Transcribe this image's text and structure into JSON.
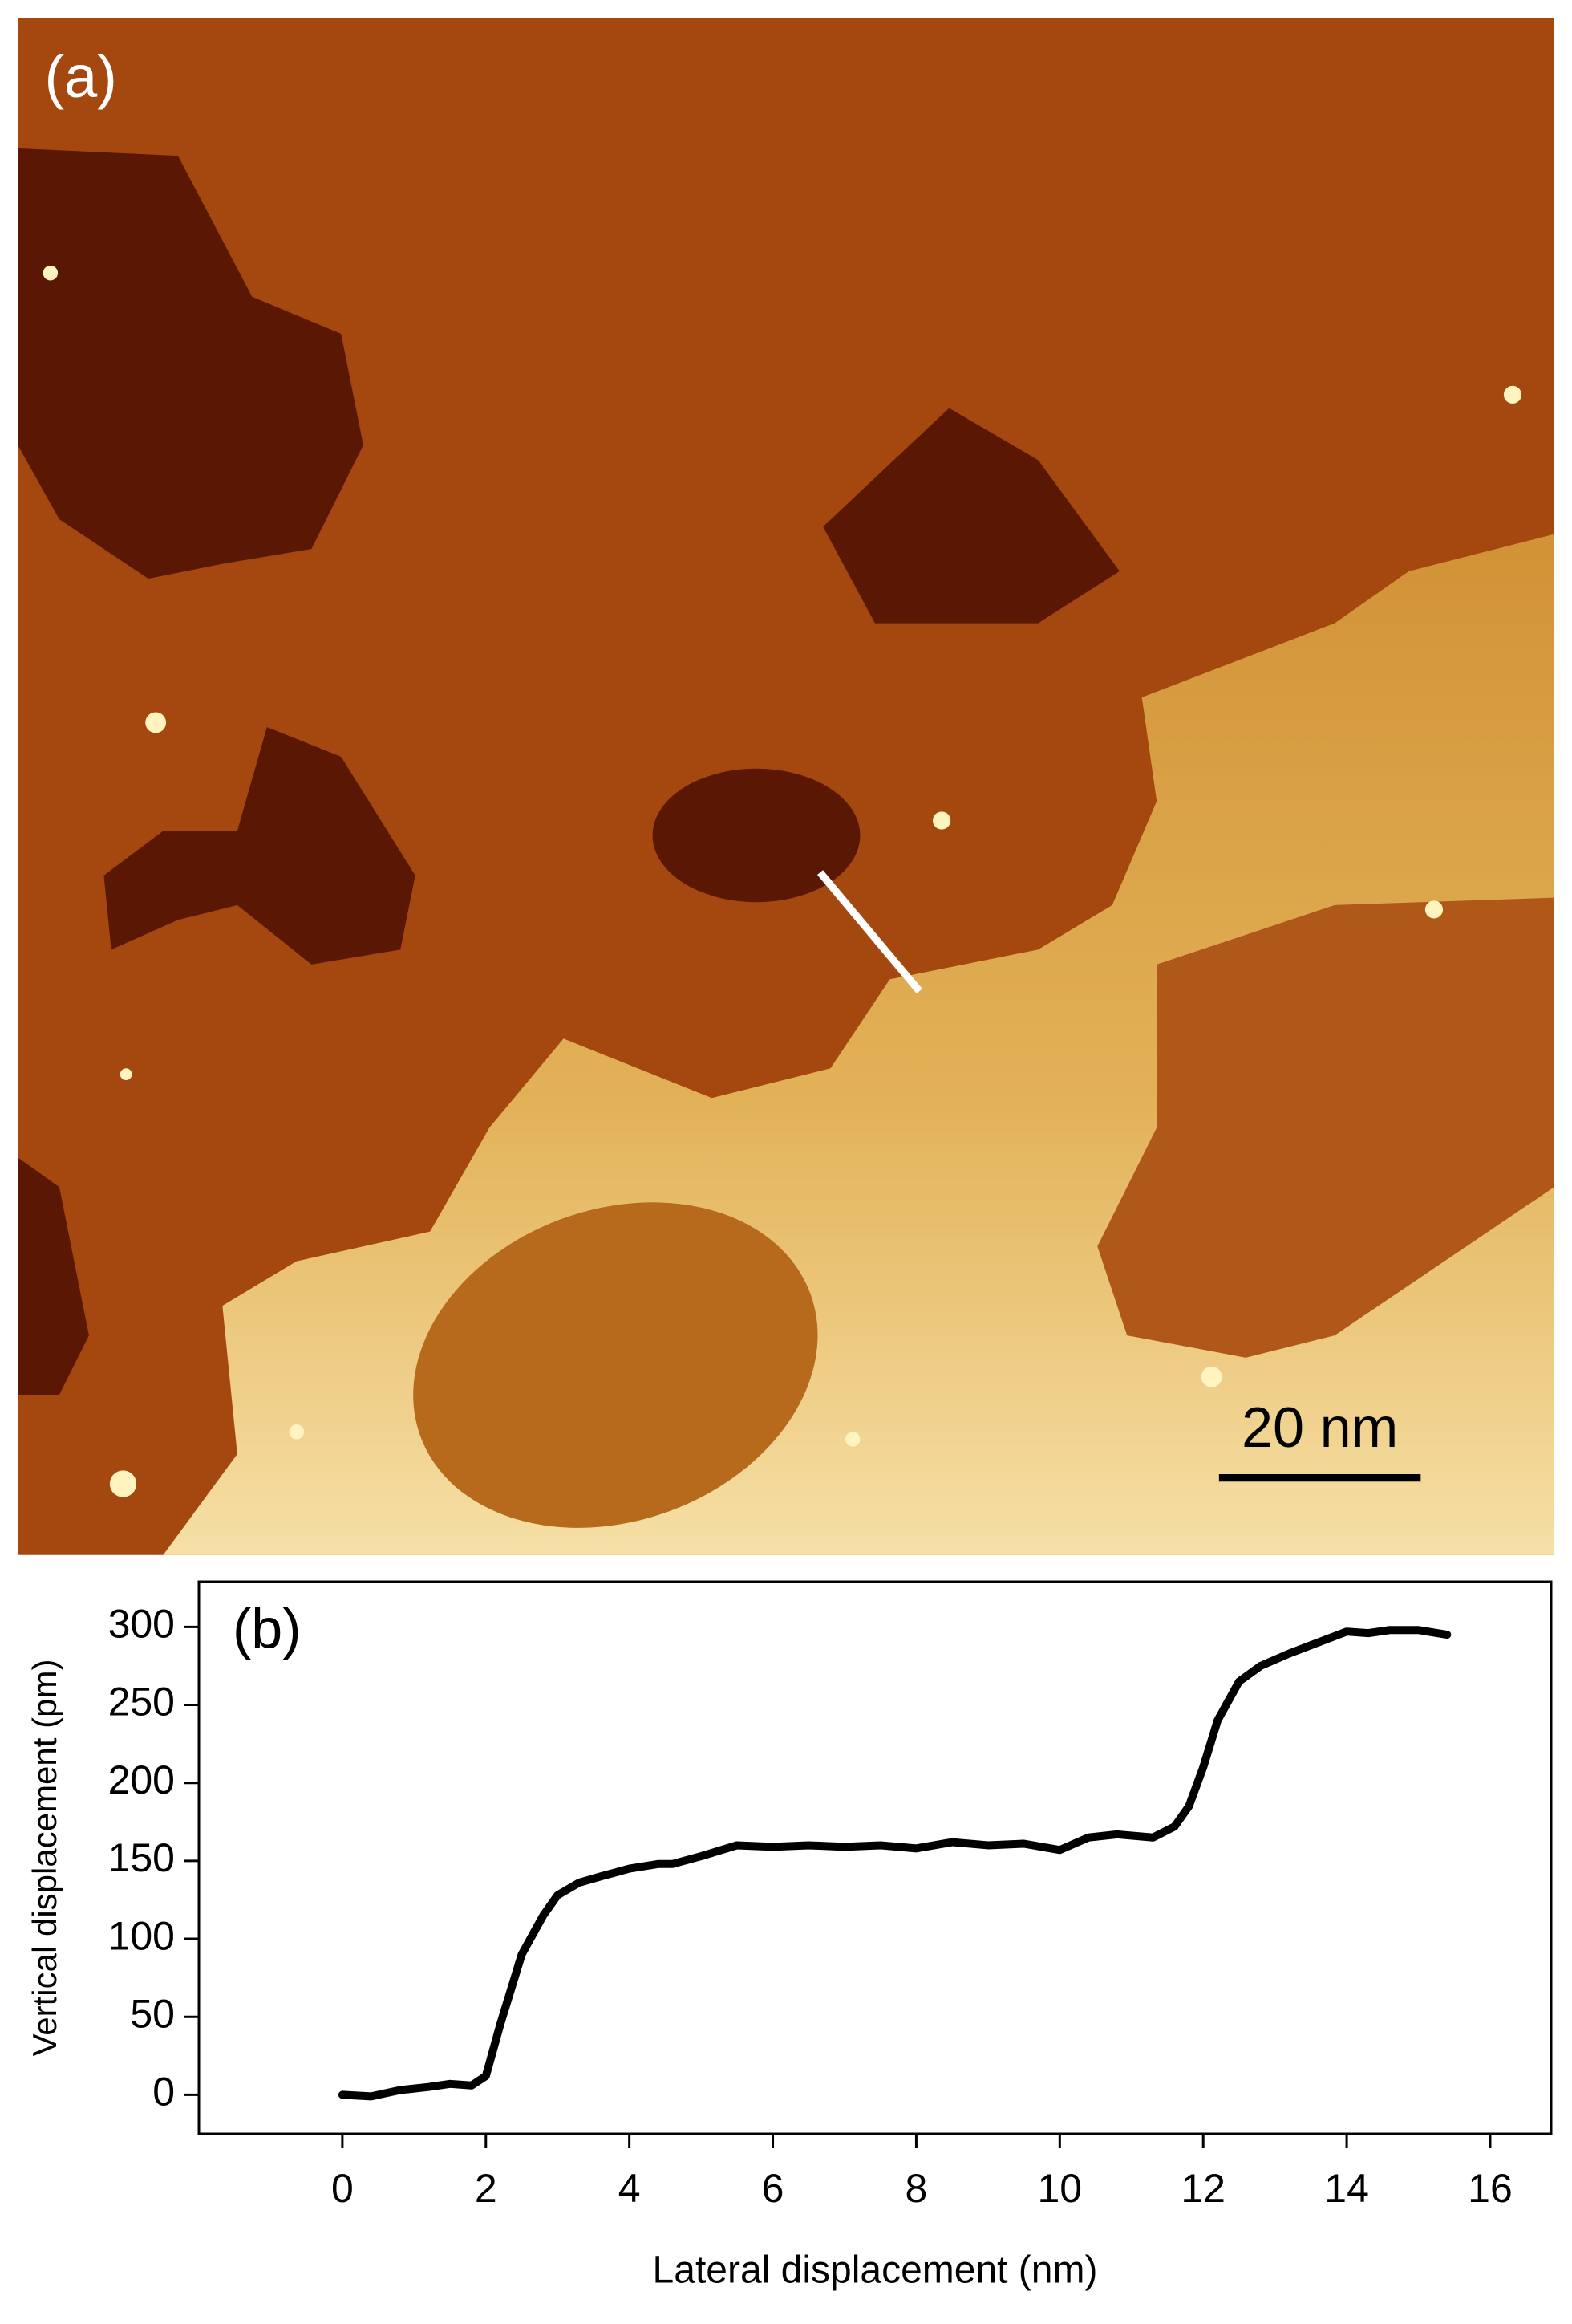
{
  "image": {
    "panel_label": "(a)",
    "scale_label": "20 nm"
  },
  "chart_data": {
    "type": "line",
    "panel_label": "(b)",
    "x_label": "Lateral displacement (nm)",
    "y_label": "Vertical displacement (pm)",
    "xlim": [
      -2,
      16.85
    ],
    "ylim": [
      -25,
      329
    ],
    "xticks": [
      0,
      2,
      4,
      6,
      8,
      10,
      12,
      14,
      16
    ],
    "yticks": [
      0,
      50,
      100,
      150,
      200,
      250,
      300
    ],
    "x": [
      0,
      0.4,
      0.8,
      1.2,
      1.5,
      1.8,
      2.0,
      2.2,
      2.5,
      2.8,
      3.0,
      3.3,
      3.6,
      4.0,
      4.4,
      4.6,
      5.0,
      5.5,
      6,
      6.5,
      7,
      7.5,
      8,
      8.5,
      9,
      9.5,
      10,
      10.4,
      10.8,
      11.3,
      11.6,
      11.8,
      12.0,
      12.2,
      12.5,
      12.8,
      13.2,
      13.6,
      14.0,
      14.3,
      14.6,
      15.0,
      15.4
    ],
    "series": [
      {
        "color": "#000000",
        "values": [
          0,
          -1,
          3,
          5,
          7,
          6,
          12,
          45,
          90,
          115,
          128,
          136,
          140,
          145,
          148,
          148,
          153,
          160,
          159,
          160,
          159,
          160,
          158,
          162,
          160,
          161,
          157,
          165,
          167,
          165,
          172,
          185,
          210,
          240,
          265,
          275,
          283,
          290,
          297,
          296,
          298,
          298,
          295
        ]
      }
    ]
  }
}
